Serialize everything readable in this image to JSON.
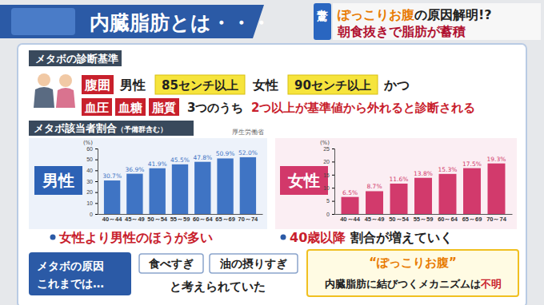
{
  "header": {
    "title": "内臓脂肪とは・・・",
    "tag": "驚き",
    "headline1": [
      "ぽっこりお腹",
      "の原因解明!?"
    ],
    "headline2": "朝食抜きで脂肪が蓄積"
  },
  "criteria": {
    "label": "メタボの診断基準",
    "waist": "腹囲",
    "male": "男性",
    "male_value": "85センチ以上",
    "female": "女性",
    "female_value": "90センチ以上",
    "and": "かつ",
    "items": [
      "血圧",
      "血糖",
      "脂質"
    ],
    "text1": "3つのうち",
    "text2": "2つ以上が基準値から外れると診断される"
  },
  "ratio": {
    "label": "メタボ該当者割合",
    "label_note": "（予備群含む）",
    "source": "厚生労働省"
  },
  "chart_data": [
    {
      "type": "bar",
      "title": "男性",
      "y_label": "(%)",
      "categories": [
        "40～44",
        "45～49",
        "50～54",
        "55～59",
        "60～64",
        "65～69",
        "70～74"
      ],
      "values": [
        30.7,
        36.9,
        41.9,
        45.5,
        47.8,
        50.9,
        52.0
      ],
      "value_labels": [
        "30.7%",
        "36.9%",
        "41.9%",
        "45.5%",
        "47.8%",
        "50.9%",
        "52.0%"
      ],
      "data_labels": true,
      "color": "#3f74c4",
      "ylim": [
        0,
        60
      ],
      "yticks": [
        0,
        10,
        20,
        30,
        40,
        50,
        60
      ],
      "grid": false
    },
    {
      "type": "bar",
      "title": "女性",
      "y_label": "(%)",
      "categories": [
        "40～44",
        "45～49",
        "50～54",
        "55～59",
        "60～64",
        "65～69",
        "70～74"
      ],
      "values": [
        6.5,
        8.7,
        11.6,
        13.8,
        15.3,
        17.5,
        19.3
      ],
      "value_labels": [
        "6.5%",
        "8.7%",
        "11.6%",
        "13.8%",
        "15.3%",
        "17.5%",
        "19.3%"
      ],
      "data_labels": true,
      "color": "#d23a6c",
      "ylim": [
        0,
        25
      ],
      "yticks": [
        0,
        5,
        10,
        15,
        20,
        25
      ],
      "grid": false
    }
  ],
  "findings": [
    [
      "女性より男性のほうが多い"
    ],
    [
      "40歳以降",
      "割合が増えていく"
    ]
  ],
  "causes": {
    "label": [
      "メタボの原因",
      "これまでは…"
    ],
    "items": [
      "食べすぎ",
      "油の摂りすぎ"
    ],
    "text": "と考えられていた",
    "box_title": "“ぽっこりお腹”",
    "box_text": [
      "内臓脂肪に結びつくメカニズムは",
      "不明"
    ]
  }
}
